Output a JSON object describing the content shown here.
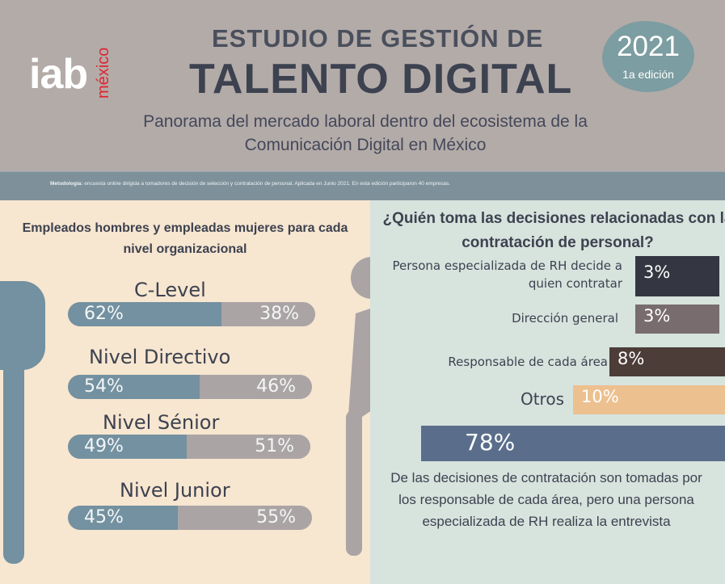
{
  "header": {
    "logo_text": "iab",
    "logo_country": "méxico",
    "title_line1": "ESTUDIO DE GESTIÓN DE",
    "title_line2": "TALENTO DIGITAL",
    "subtitle_line1": "Panorama del mercado laboral dentro del ecosistema de la",
    "subtitle_line2": "Comunicación Digital en México",
    "badge_year": "2021",
    "badge_edition": "1a edición"
  },
  "methodology": {
    "label": "Metodología:",
    "text": "encuesta online dirigida a tomadores de decisión de selección y contratación de personal. Aplicada en Junio 2021. En esta edición participaron 40 empresas."
  },
  "colors": {
    "men": "#7391a0",
    "women": "#aaa4a5",
    "rh": "#343641",
    "general": "#786c6e",
    "area": "#4c3d38",
    "otros": "#edc08f",
    "highlight": "#5a6e8c"
  },
  "chart_data": [
    {
      "type": "bar",
      "title": "Empleados hombres y empleadas mujeres para cada nivel organizacional",
      "categories": [
        "C-Level",
        "Nivel Directivo",
        "Nivel Sénior",
        "Nivel Junior"
      ],
      "series": [
        {
          "values": [
            62,
            54,
            49,
            45
          ]
        },
        {
          "values": [
            38,
            46,
            51,
            55
          ]
        }
      ],
      "labels": [
        {
          "men": "62%",
          "women": "38%"
        },
        {
          "men": "54%",
          "women": "46%"
        },
        {
          "men": "49%",
          "women": "51%"
        },
        {
          "men": "45%",
          "women": "55%"
        }
      ]
    },
    {
      "type": "bar",
      "title": "¿Quién toma las decisiones relacionadas con la contratación de personal?",
      "categories": [
        "Persona especializada de RH decide a quien contratar",
        "Dirección general",
        "Responsable de cada área",
        "Otros"
      ],
      "values": [
        3,
        3,
        8,
        10
      ],
      "value_labels": [
        "3%",
        "3%",
        "8%",
        "10%"
      ],
      "highlight": {
        "value": 78,
        "label": "78%",
        "text": "De las decisiones de contratación son tomadas por los responsable de cada área, pero una persona especializada de RH realiza la entrevista"
      }
    }
  ]
}
